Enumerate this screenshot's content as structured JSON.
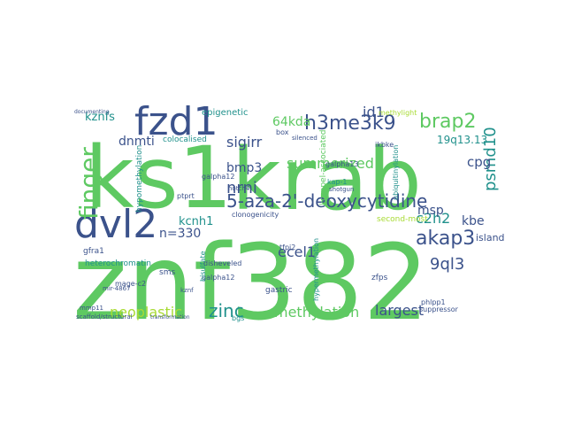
{
  "palette": {
    "background": "#ffffff",
    "green_light": "#5ec962",
    "green": "#3fb56b",
    "teal": "#21918c",
    "blue": "#2f6c8e",
    "indigo": "#3b528b",
    "purple": "#472d7b",
    "yellow": "#dfe318",
    "lime": "#a8db34"
  },
  "words": [
    {
      "text": "znf382",
      "color": "#5ec962"
    },
    {
      "text": "ks1",
      "color": "#5ec962"
    },
    {
      "text": "krab",
      "color": "#5ec962"
    },
    {
      "text": "fzd1",
      "color": "#3b528b"
    },
    {
      "text": "dvl2",
      "color": "#3b528b"
    },
    {
      "text": "h3me3k9",
      "color": "#3b528b"
    },
    {
      "text": "5-aza-2'-deoxycytidine",
      "color": "#3b528b"
    },
    {
      "text": "finger",
      "color": "#5ec962"
    },
    {
      "text": "zinc",
      "color": "#21918c"
    },
    {
      "text": "akap3",
      "color": "#3b528b"
    },
    {
      "text": "brap2",
      "color": "#5ec962"
    },
    {
      "text": "nrni",
      "color": "#3b528b"
    },
    {
      "text": "sigirr",
      "color": "#3b528b"
    },
    {
      "text": "dnmti",
      "color": "#3b528b"
    },
    {
      "text": "kznfs",
      "color": "#21918c"
    },
    {
      "text": "summerized",
      "color": "#5ec962"
    },
    {
      "text": "neoplastic",
      "color": "#a8db34"
    },
    {
      "text": "methylation",
      "color": "#5ec962"
    },
    {
      "text": "ecel1",
      "color": "#3b528b"
    },
    {
      "text": "largest",
      "color": "#3b528b"
    },
    {
      "text": "9ql3",
      "color": "#3b528b"
    },
    {
      "text": "c2h2",
      "color": "#21918c"
    },
    {
      "text": "msp",
      "color": "#3b528b"
    },
    {
      "text": "kbe",
      "color": "#3b528b"
    },
    {
      "text": "psmd10",
      "color": "#21918c"
    },
    {
      "text": "cpg",
      "color": "#3b528b"
    },
    {
      "text": "19q13.13",
      "color": "#21918c"
    },
    {
      "text": "id1",
      "color": "#3b528b"
    },
    {
      "text": "64kda",
      "color": "#5ec962"
    },
    {
      "text": "bmp3",
      "color": "#3b528b"
    },
    {
      "text": "kcnh1",
      "color": "#21918c"
    },
    {
      "text": "n=330",
      "color": "#3b528b"
    },
    {
      "text": "epigenetic",
      "color": "#21918c"
    },
    {
      "text": "colocalised",
      "color": "#21918c"
    },
    {
      "text": "hypomethylation",
      "color": "#21918c"
    },
    {
      "text": "methylight",
      "color": "#a8db34"
    },
    {
      "text": "box",
      "color": "#3b528b"
    },
    {
      "text": "kruppel-associated",
      "color": "#5ec962"
    },
    {
      "text": "galpha13",
      "color": "#3b528b"
    },
    {
      "text": "kap-1",
      "color": "#21918c"
    },
    {
      "text": "ikbke",
      "color": "#3b528b"
    },
    {
      "text": "clonogenicity",
      "color": "#3b528b"
    },
    {
      "text": "notch4",
      "color": "#3b528b"
    },
    {
      "text": "galpha12",
      "color": "#3b528b"
    },
    {
      "text": "second-most",
      "color": "#a8db34"
    },
    {
      "text": "island",
      "color": "#3b528b"
    },
    {
      "text": "heterochromatin",
      "color": "#21918c"
    },
    {
      "text": "tfpi2",
      "color": "#3b528b"
    },
    {
      "text": "gfra1",
      "color": "#3b528b"
    },
    {
      "text": "sms",
      "color": "#3b528b"
    },
    {
      "text": "mage-c2",
      "color": "#3b528b"
    },
    {
      "text": "mir-4867",
      "color": "#3b528b"
    },
    {
      "text": "bisulfate",
      "color": "#21918c"
    },
    {
      "text": "disheveled",
      "color": "#3b528b"
    },
    {
      "text": "hypermethylation",
      "color": "#21918c"
    },
    {
      "text": "zfps",
      "color": "#3b528b"
    },
    {
      "text": "gastric",
      "color": "#3b528b"
    },
    {
      "text": "galpha12",
      "color": "#3b528b"
    },
    {
      "text": "phlpp1",
      "color": "#3b528b"
    },
    {
      "text": "suppressor",
      "color": "#3b528b"
    },
    {
      "text": "mmp11",
      "color": "#3b528b"
    },
    {
      "text": "scaffold/structural",
      "color": "#3b528b"
    },
    {
      "text": "transformation",
      "color": "#3b528b"
    },
    {
      "text": "bgs",
      "color": "#21918c"
    },
    {
      "text": "ptprt",
      "color": "#3b528b"
    },
    {
      "text": "kznf",
      "color": "#3b528b"
    },
    {
      "text": "shotgun",
      "color": "#3b528b"
    },
    {
      "text": "silenced",
      "color": "#3b528b"
    },
    {
      "text": "documenting",
      "color": "#3b528b"
    },
    {
      "text": "ubiquitinylation",
      "color": "#21918c"
    }
  ]
}
